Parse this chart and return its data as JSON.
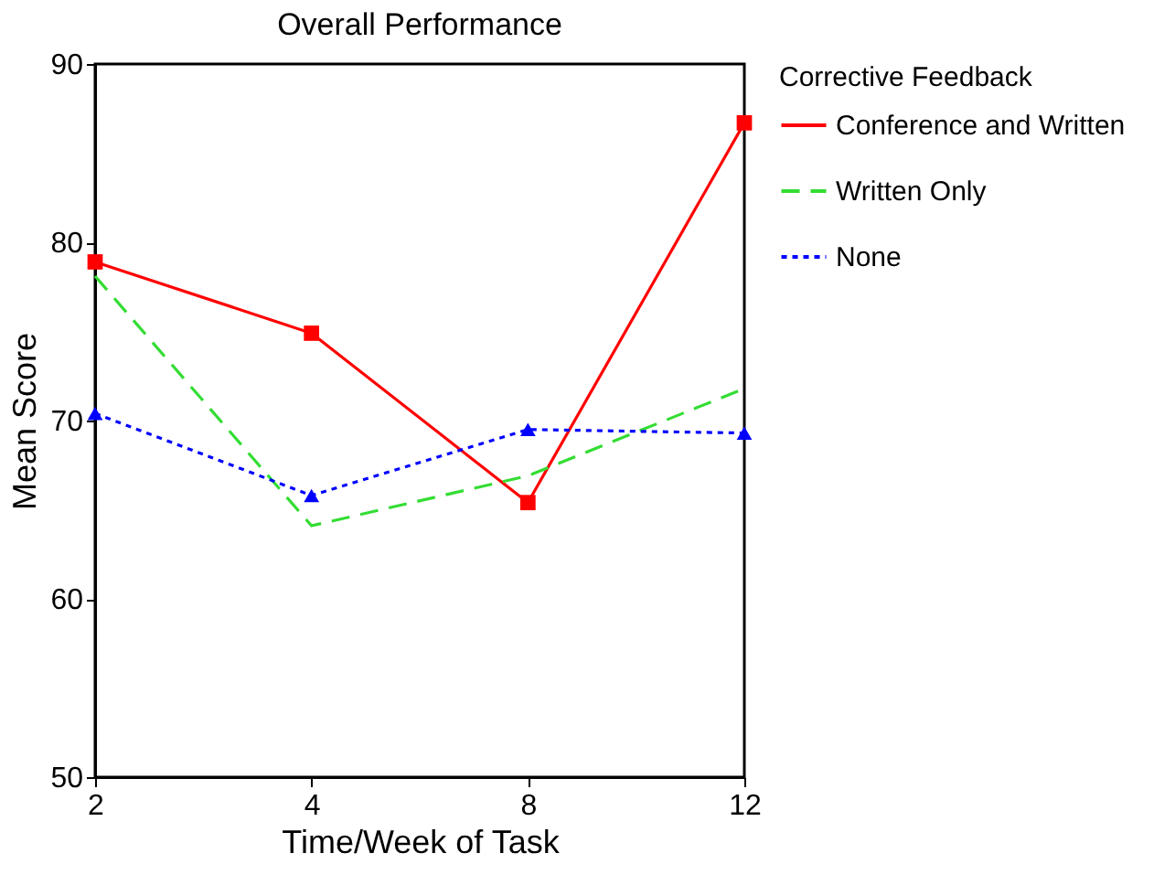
{
  "chart_data": {
    "type": "line",
    "title": "Overall Performance",
    "xlabel": "Time/Week of Task",
    "ylabel": "Mean Score",
    "legend_title": "Corrective Feedback",
    "categories": [
      "2",
      "4",
      "8",
      "12"
    ],
    "series": [
      {
        "name": "Conference and Written",
        "color": "#ff0000",
        "values": [
          78.9,
          74.9,
          65.4,
          86.7
        ],
        "marker": "square",
        "line_style": "solid"
      },
      {
        "name": "Written Only",
        "color": "#33dd33",
        "values": [
          78.1,
          64.1,
          66.9,
          71.8
        ],
        "marker": "none",
        "line_style": "dashed"
      },
      {
        "name": "None",
        "color": "#0000ff",
        "values": [
          70.4,
          65.8,
          69.5,
          69.3
        ],
        "marker": "triangle",
        "line_style": "dotted"
      }
    ],
    "ylim": [
      50,
      90
    ],
    "yticks": [
      50,
      60,
      70,
      80,
      90
    ],
    "grid": false,
    "legend": "right"
  }
}
